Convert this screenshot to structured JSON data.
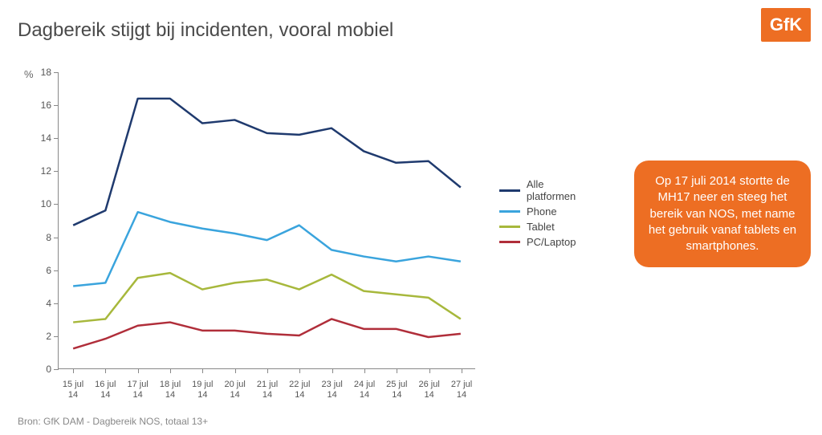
{
  "title": "Dagbereik stijgt bij incidenten, vooral mobiel",
  "logo_text": "GfK",
  "logo_bg": "#ed6e23",
  "logo_fg": "#ffffff",
  "chart": {
    "type": "line",
    "y_unit": "%",
    "ylim": [
      0,
      18
    ],
    "ytick_step": 2,
    "x_labels": [
      "15 jul 14",
      "16 jul 14",
      "17 jul 14",
      "18 jul 14",
      "19 jul 14",
      "20 jul 14",
      "21 jul 14",
      "22 jul 14",
      "23 jul 14",
      "24 jul 14",
      "25 jul 14",
      "26 jul 14",
      "27 jul 14"
    ],
    "axis_color": "#888888",
    "tick_label_color": "#555555",
    "tick_fontsize": 12,
    "line_width": 2.5,
    "background_color": "#ffffff",
    "series": [
      {
        "name": "Alle platformen",
        "color": "#1f3a6e",
        "values": [
          8.7,
          9.6,
          16.4,
          16.4,
          14.9,
          15.1,
          14.3,
          14.2,
          14.6,
          13.2,
          12.5,
          12.6,
          11.0
        ]
      },
      {
        "name": "Phone",
        "color": "#3aa4dd",
        "values": [
          5.0,
          5.2,
          9.5,
          8.9,
          8.5,
          8.2,
          7.8,
          8.7,
          7.2,
          6.8,
          6.5,
          6.8,
          6.5
        ]
      },
      {
        "name": "Tablet",
        "color": "#a7b83c",
        "values": [
          2.8,
          3.0,
          5.5,
          5.8,
          4.8,
          5.2,
          5.4,
          4.8,
          5.7,
          4.7,
          4.5,
          4.3,
          3.0
        ]
      },
      {
        "name": "PC/Laptop",
        "color": "#b02e3a",
        "values": [
          1.2,
          1.8,
          2.6,
          2.8,
          2.3,
          2.3,
          2.1,
          2.0,
          3.0,
          2.4,
          2.4,
          1.9,
          2.1
        ]
      }
    ]
  },
  "legend_fontsize": 13,
  "callout": {
    "text": "Op 17 juli 2014 stortte de MH17 neer en steeg het bereik van NOS, met name het gebruik vanaf tablets en smartphones.",
    "bg": "#ed6e23",
    "fg": "#ffffff",
    "fontsize": 15,
    "radius": 18
  },
  "source": "Bron: GfK DAM -  Dagbereik NOS, totaal 13+"
}
